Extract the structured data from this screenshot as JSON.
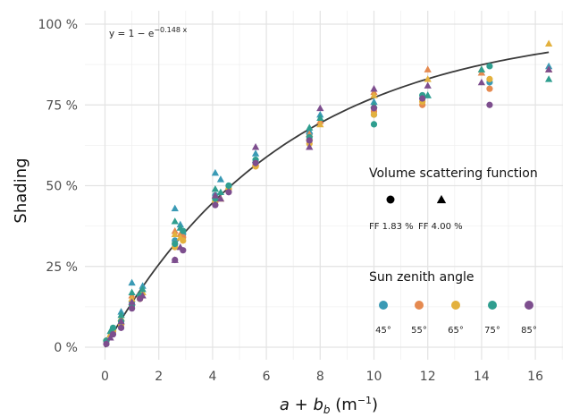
{
  "chart_data": {
    "type": "scatter",
    "xlabel_main": "a + b",
    "xlabel_sub": "b",
    "xlabel_unit_open": " (m",
    "xlabel_unit_sup": "−1",
    "xlabel_unit_close": ")",
    "ylabel": "Shading",
    "xlim": [
      -0.5,
      17.0
    ],
    "ylim": [
      -0.04,
      1.0
    ],
    "x_ticks": [
      0,
      2,
      4,
      6,
      8,
      10,
      12,
      14,
      16
    ],
    "x_tick_labels": [
      "0",
      "2",
      "4",
      "6",
      "8",
      "10",
      "12",
      "14",
      "16"
    ],
    "y_ticks": [
      0,
      0.25,
      0.5,
      0.75,
      1.0
    ],
    "y_tick_labels": [
      "0 %",
      "25 %",
      "50 %",
      "75 %",
      "100 %"
    ],
    "grid": true,
    "fit": {
      "k": 0.148,
      "label_main": "y = 1 − e",
      "label_exp": "−0.148 x"
    },
    "legend_shape": {
      "title": "Volume scattering function",
      "items": [
        {
          "label": "FF 1.83 %",
          "shape": "circle"
        },
        {
          "label": "FF 4.00 %",
          "shape": "triangle"
        }
      ]
    },
    "legend_color": {
      "title": "Sun zenith angle",
      "items": [
        {
          "label": "45°",
          "color": "#3A9AB5"
        },
        {
          "label": "55°",
          "color": "#E58A50"
        },
        {
          "label": "65°",
          "color": "#E3B13E"
        },
        {
          "label": "75°",
          "color": "#2F9E8F"
        },
        {
          "label": "85°",
          "color": "#7D4E8E"
        }
      ]
    },
    "series": [
      {
        "sza": "45°",
        "shape": "circle",
        "points": [
          [
            0.05,
            0.02
          ],
          [
            0.3,
            0.05
          ],
          [
            0.6,
            0.08
          ],
          [
            1.0,
            0.14
          ],
          [
            1.3,
            0.16
          ],
          [
            2.6,
            0.33
          ],
          [
            2.9,
            0.35
          ],
          [
            4.1,
            0.47
          ],
          [
            4.6,
            0.5
          ],
          [
            5.6,
            0.57
          ],
          [
            7.6,
            0.66
          ],
          [
            10.0,
            0.72
          ],
          [
            11.8,
            0.77
          ],
          [
            14.3,
            0.82
          ]
        ]
      },
      {
        "sza": "45°",
        "shape": "triangle",
        "points": [
          [
            0.2,
            0.04
          ],
          [
            0.6,
            0.11
          ],
          [
            1.0,
            0.2
          ],
          [
            1.4,
            0.19
          ],
          [
            2.6,
            0.43
          ],
          [
            2.8,
            0.38
          ],
          [
            4.1,
            0.54
          ],
          [
            4.3,
            0.52
          ],
          [
            5.6,
            0.6
          ],
          [
            7.6,
            0.67
          ],
          [
            8.0,
            0.72
          ],
          [
            10.0,
            0.76
          ],
          [
            12.0,
            0.78
          ],
          [
            14.0,
            0.85
          ],
          [
            16.5,
            0.87
          ]
        ]
      },
      {
        "sza": "55°",
        "shape": "circle",
        "points": [
          [
            0.05,
            0.02
          ],
          [
            0.3,
            0.05
          ],
          [
            0.6,
            0.07
          ],
          [
            1.0,
            0.13
          ],
          [
            1.3,
            0.15
          ],
          [
            2.6,
            0.32
          ],
          [
            2.9,
            0.34
          ],
          [
            4.1,
            0.46
          ],
          [
            4.6,
            0.49
          ],
          [
            5.6,
            0.56
          ],
          [
            7.6,
            0.64
          ],
          [
            10.0,
            0.73
          ],
          [
            11.8,
            0.75
          ],
          [
            14.3,
            0.8
          ]
        ]
      },
      {
        "sza": "55°",
        "shape": "triangle",
        "points": [
          [
            0.2,
            0.04
          ],
          [
            0.6,
            0.09
          ],
          [
            1.0,
            0.16
          ],
          [
            1.4,
            0.17
          ],
          [
            2.6,
            0.36
          ],
          [
            2.8,
            0.35
          ],
          [
            4.1,
            0.47
          ],
          [
            4.3,
            0.46
          ],
          [
            5.6,
            0.57
          ],
          [
            7.6,
            0.66
          ],
          [
            8.0,
            0.7
          ],
          [
            10.0,
            0.79
          ],
          [
            12.0,
            0.86
          ],
          [
            14.0,
            0.85
          ],
          [
            16.5,
            0.86
          ]
        ]
      },
      {
        "sza": "65°",
        "shape": "circle",
        "points": [
          [
            0.05,
            0.02
          ],
          [
            0.3,
            0.05
          ],
          [
            0.6,
            0.07
          ],
          [
            1.0,
            0.13
          ],
          [
            1.3,
            0.15
          ],
          [
            2.6,
            0.31
          ],
          [
            2.9,
            0.33
          ],
          [
            4.1,
            0.45
          ],
          [
            4.6,
            0.49
          ],
          [
            5.6,
            0.56
          ],
          [
            7.6,
            0.63
          ],
          [
            10.0,
            0.72
          ],
          [
            11.8,
            0.76
          ],
          [
            14.3,
            0.83
          ]
        ]
      },
      {
        "sza": "65°",
        "shape": "triangle",
        "points": [
          [
            0.2,
            0.04
          ],
          [
            0.6,
            0.09
          ],
          [
            1.0,
            0.15
          ],
          [
            1.4,
            0.17
          ],
          [
            2.6,
            0.35
          ],
          [
            2.8,
            0.34
          ],
          [
            4.1,
            0.46
          ],
          [
            4.3,
            0.46
          ],
          [
            5.6,
            0.57
          ],
          [
            7.6,
            0.65
          ],
          [
            8.0,
            0.69
          ],
          [
            10.0,
            0.78
          ],
          [
            12.0,
            0.83
          ],
          [
            14.0,
            0.86
          ],
          [
            16.5,
            0.94
          ]
        ]
      },
      {
        "sza": "75°",
        "shape": "circle",
        "points": [
          [
            0.05,
            0.02
          ],
          [
            0.3,
            0.06
          ],
          [
            0.6,
            0.08
          ],
          [
            1.0,
            0.13
          ],
          [
            1.3,
            0.16
          ],
          [
            2.6,
            0.32
          ],
          [
            2.9,
            0.36
          ],
          [
            4.1,
            0.46
          ],
          [
            4.6,
            0.5
          ],
          [
            5.6,
            0.58
          ],
          [
            7.6,
            0.65
          ],
          [
            10.0,
            0.69
          ],
          [
            11.8,
            0.78
          ],
          [
            14.3,
            0.87
          ]
        ]
      },
      {
        "sza": "75°",
        "shape": "triangle",
        "points": [
          [
            0.2,
            0.05
          ],
          [
            0.6,
            0.1
          ],
          [
            1.0,
            0.17
          ],
          [
            1.4,
            0.18
          ],
          [
            2.6,
            0.39
          ],
          [
            2.8,
            0.37
          ],
          [
            4.1,
            0.49
          ],
          [
            4.3,
            0.48
          ],
          [
            5.6,
            0.58
          ],
          [
            7.6,
            0.68
          ],
          [
            8.0,
            0.71
          ],
          [
            10.0,
            0.75
          ],
          [
            12.0,
            0.78
          ],
          [
            14.0,
            0.86
          ],
          [
            16.5,
            0.83
          ]
        ]
      },
      {
        "sza": "85°",
        "shape": "circle",
        "points": [
          [
            0.05,
            0.01
          ],
          [
            0.3,
            0.04
          ],
          [
            0.6,
            0.06
          ],
          [
            1.0,
            0.12
          ],
          [
            1.3,
            0.15
          ],
          [
            2.6,
            0.27
          ],
          [
            2.9,
            0.3
          ],
          [
            4.1,
            0.44
          ],
          [
            4.6,
            0.48
          ],
          [
            5.6,
            0.57
          ],
          [
            7.6,
            0.64
          ],
          [
            10.0,
            0.74
          ],
          [
            11.8,
            0.77
          ],
          [
            14.3,
            0.75
          ]
        ]
      },
      {
        "sza": "85°",
        "shape": "triangle",
        "points": [
          [
            0.2,
            0.03
          ],
          [
            0.6,
            0.08
          ],
          [
            1.0,
            0.14
          ],
          [
            1.4,
            0.16
          ],
          [
            2.6,
            0.27
          ],
          [
            2.8,
            0.31
          ],
          [
            4.1,
            0.47
          ],
          [
            4.3,
            0.46
          ],
          [
            5.6,
            0.62
          ],
          [
            7.6,
            0.62
          ],
          [
            8.0,
            0.74
          ],
          [
            10.0,
            0.8
          ],
          [
            12.0,
            0.81
          ],
          [
            14.0,
            0.82
          ],
          [
            16.5,
            0.86
          ]
        ]
      }
    ]
  }
}
